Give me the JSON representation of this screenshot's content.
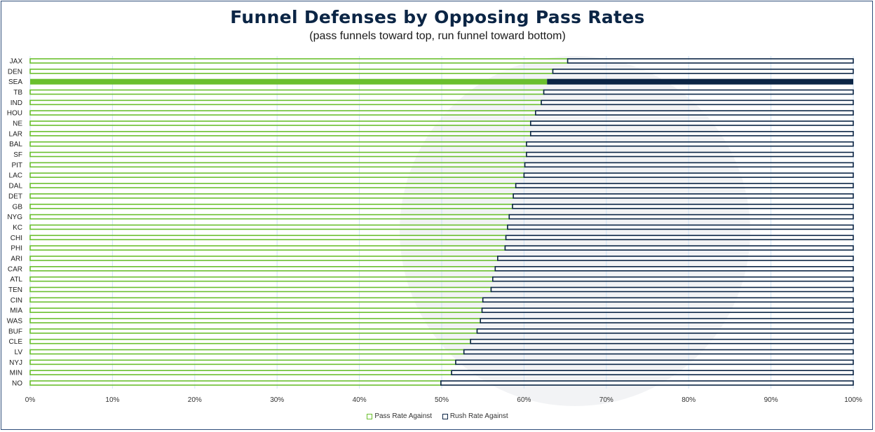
{
  "title": "Funnel Defenses by Opposing Pass Rates",
  "subtitle": "(pass funnels toward top, run funnel toward bottom)",
  "chart_data": {
    "type": "bar",
    "orientation": "horizontal",
    "stacked": "100%",
    "title": "Funnel Defenses by Opposing Pass Rates",
    "subtitle": "(pass funnels toward top, run funnel toward bottom)",
    "categories": [
      "JAX",
      "DEN",
      "SEA",
      "TB",
      "IND",
      "HOU",
      "NE",
      "LAR",
      "BAL",
      "SF",
      "PIT",
      "LAC",
      "DAL",
      "DET",
      "GB",
      "NYG",
      "KC",
      "CHI",
      "PHI",
      "ARI",
      "CAR",
      "ATL",
      "TEN",
      "CIN",
      "MIA",
      "WAS",
      "BUF",
      "CLE",
      "LV",
      "NYJ",
      "MIN",
      "NO"
    ],
    "series": [
      {
        "name": "Pass Rate Against",
        "color": "#6abf2e",
        "values": [
          65.3,
          63.5,
          62.8,
          62.4,
          62.1,
          61.4,
          60.8,
          60.8,
          60.3,
          60.3,
          60.1,
          60.0,
          59.0,
          58.7,
          58.6,
          58.2,
          58.0,
          57.8,
          57.7,
          56.8,
          56.5,
          56.2,
          56.0,
          55.0,
          54.9,
          54.7,
          54.3,
          53.5,
          52.7,
          51.7,
          51.2,
          49.9
        ]
      },
      {
        "name": "Rush Rate Against",
        "color": "#0b2545",
        "values": [
          34.7,
          36.5,
          37.2,
          37.6,
          37.9,
          38.6,
          39.2,
          39.2,
          39.7,
          39.7,
          39.9,
          40.0,
          41.0,
          41.3,
          41.4,
          41.8,
          42.0,
          42.2,
          42.3,
          43.2,
          43.5,
          43.8,
          44.0,
          45.0,
          45.1,
          45.3,
          45.7,
          46.5,
          47.3,
          48.3,
          48.8,
          50.1
        ]
      }
    ],
    "highlight": "SEA",
    "xlim": [
      0,
      100
    ],
    "xticks": [
      "0%",
      "10%",
      "20%",
      "30%",
      "40%",
      "50%",
      "60%",
      "70%",
      "80%",
      "90%",
      "100%"
    ],
    "grid": true,
    "legend_position": "bottom"
  }
}
